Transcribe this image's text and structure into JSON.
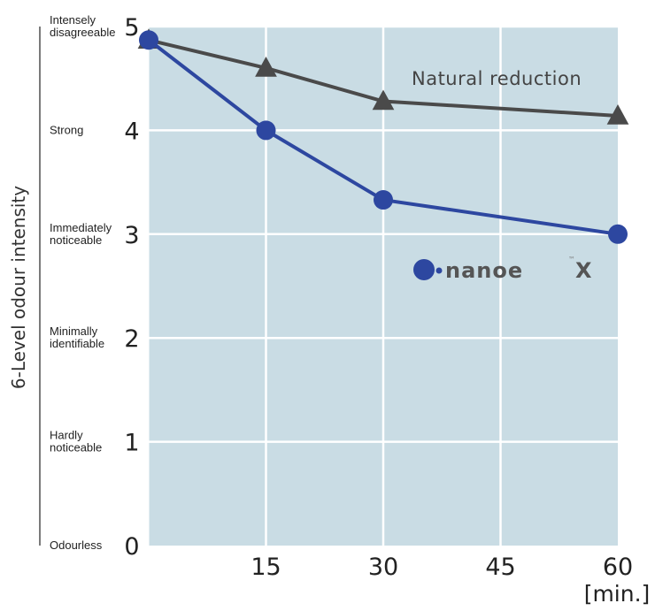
{
  "chart_data": {
    "type": "line",
    "ylabel": "6-Level odour intensity",
    "x_unit": "[min.]",
    "x_ticks": [
      "15",
      "30",
      "45",
      "60"
    ],
    "y_ticks": [
      "0",
      "1",
      "2",
      "3",
      "4",
      "5"
    ],
    "y_level_labels": [
      {
        "value": 5,
        "lines": [
          "Intensely",
          "disagreeable"
        ]
      },
      {
        "value": 4,
        "lines": [
          "Strong"
        ]
      },
      {
        "value": 3,
        "lines": [
          "Immediately",
          "noticeable"
        ]
      },
      {
        "value": 2,
        "lines": [
          "Minimally",
          "identifiable"
        ]
      },
      {
        "value": 1,
        "lines": [
          "Hardly",
          "noticeable"
        ]
      },
      {
        "value": 0,
        "lines": [
          "Odourless"
        ]
      }
    ],
    "xlim": [
      0,
      60
    ],
    "ylim": [
      0,
      5
    ],
    "grid": true,
    "series": [
      {
        "name": "Natural reduction",
        "color": "#4a4a4a",
        "marker": "triangle",
        "x": [
          0,
          15,
          30,
          60
        ],
        "y": [
          4.87,
          4.6,
          4.28,
          4.14
        ]
      },
      {
        "name": "nanoeX",
        "color": "#2d47a0",
        "marker": "circle",
        "x": [
          0,
          15,
          30,
          60
        ],
        "y": [
          4.87,
          4.0,
          3.33,
          3.0
        ]
      }
    ],
    "annotation": "Natural reduction",
    "logo_text": "nanoe",
    "logo_mark": "X",
    "logo_tm": "™",
    "plot_bg": "#c9dce4",
    "grid_color": "#ffffff"
  }
}
